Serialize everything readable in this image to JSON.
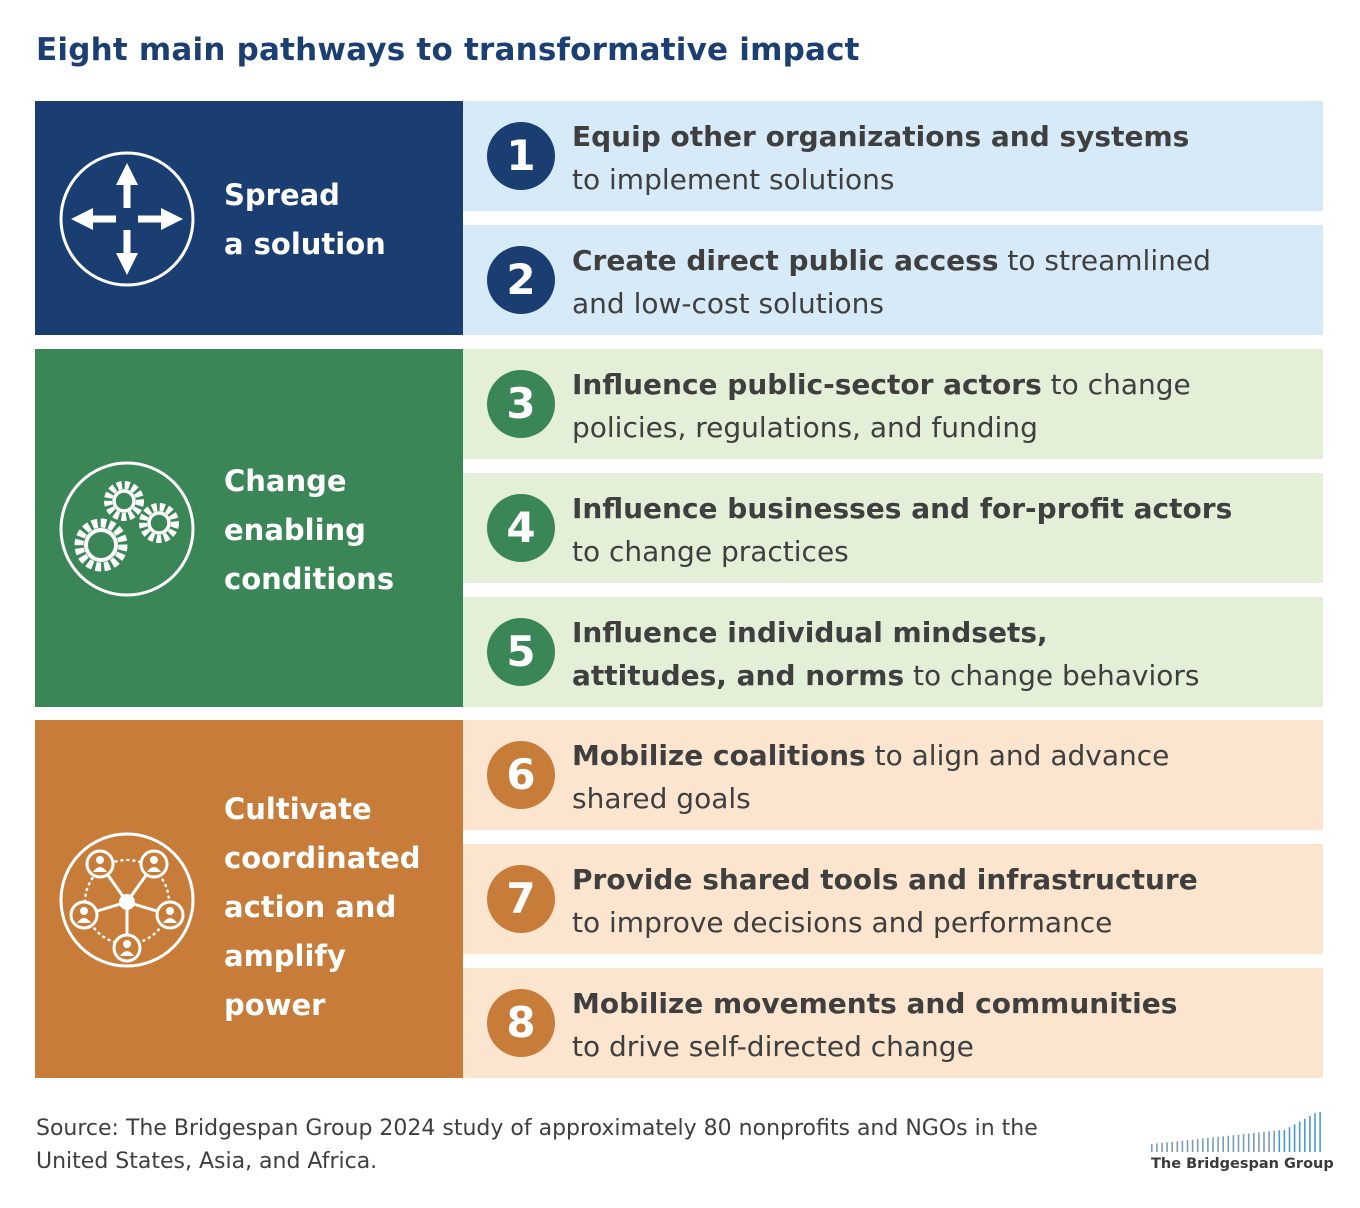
{
  "title": "Eight main pathways to transformative impact",
  "groups": [
    {
      "label_lines": [
        "Spread",
        "a solution"
      ],
      "icon": "four-arrows-icon",
      "color": "#1a3e71",
      "row_color": "#d6eaf8",
      "items": [
        {
          "number": "1",
          "bold": "Equip other organizations and systems",
          "rest": "to implement solutions"
        },
        {
          "number": "2",
          "bold": "Create direct public access",
          "rest": "to streamlined and low-cost solutions"
        }
      ]
    },
    {
      "label_lines": [
        "Change",
        "enabling",
        "conditions"
      ],
      "icon": "gears-icon",
      "color": "#3b8656",
      "row_color": "#e4efd8",
      "items": [
        {
          "number": "3",
          "bold": "Influence public-sector actors",
          "rest": "to change policies, regulations, and funding"
        },
        {
          "number": "4",
          "bold": "Influence businesses and for-profit actors",
          "rest": "to change practices"
        },
        {
          "number": "5",
          "bold": "Influence individual mindsets, attitudes, and norms",
          "rest": "to change behaviors"
        }
      ]
    },
    {
      "label_lines": [
        "Cultivate",
        "coordinated",
        "action and",
        "amplify",
        "power"
      ],
      "icon": "people-network-icon",
      "color": "#c77c3a",
      "row_color": "#fbe5cf",
      "items": [
        {
          "number": "6",
          "bold": "Mobilize coalitions",
          "rest": "to align and advance shared goals"
        },
        {
          "number": "7",
          "bold": "Provide shared tools and infrastructure",
          "rest": "to improve decisions and performance"
        },
        {
          "number": "8",
          "bold": "Mobilize movements and communities",
          "rest": "to drive self-directed change"
        }
      ]
    }
  ],
  "source": "Source: The Bridgespan Group 2024 study of approximately 80 nonprofits and NGOs in the United States, Asia, and Africa.",
  "logo": {
    "text": "The Bridgespan Group",
    "icon": "bar-graphic-logo"
  }
}
